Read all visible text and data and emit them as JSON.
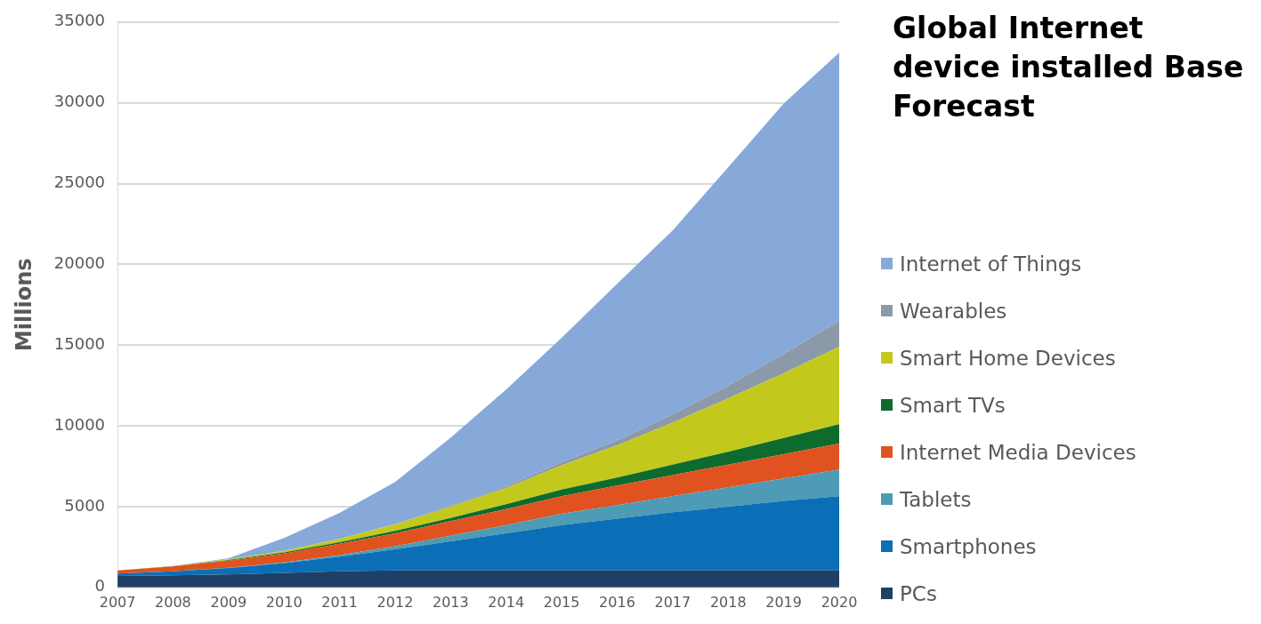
{
  "chart_data": {
    "type": "area",
    "stacked": true,
    "title": "Global Internet device installed Base Forecast",
    "ylabel": "Millions",
    "categories": [
      "2007",
      "2008",
      "2009",
      "2010",
      "2011",
      "2012",
      "2013",
      "2014",
      "2015",
      "2016",
      "2017",
      "2018",
      "2019",
      "2020"
    ],
    "ylim": [
      0,
      35000
    ],
    "yticks": [
      0,
      5000,
      10000,
      15000,
      20000,
      25000,
      30000,
      35000
    ],
    "grid": "y",
    "legend": "right",
    "series": [
      {
        "name": "PCs",
        "color": "#1f3f66",
        "values": [
          700,
          750,
          800,
          900,
          1000,
          1050,
          1050,
          1050,
          1050,
          1050,
          1050,
          1050,
          1050,
          1050
        ]
      },
      {
        "name": "Smartphones",
        "color": "#0b6fb8",
        "values": [
          150,
          250,
          400,
          600,
          900,
          1300,
          1800,
          2300,
          2800,
          3200,
          3600,
          3950,
          4300,
          4600
        ]
      },
      {
        "name": "Tablets",
        "color": "#4d9bb5",
        "values": [
          0,
          0,
          10,
          50,
          100,
          200,
          350,
          500,
          700,
          850,
          1000,
          1200,
          1400,
          1650
        ]
      },
      {
        "name": "Internet Media Devices",
        "color": "#e0521f",
        "values": [
          200,
          300,
          450,
          550,
          700,
          800,
          900,
          1000,
          1100,
          1200,
          1300,
          1400,
          1500,
          1600
        ]
      },
      {
        "name": "Smart TVs",
        "color": "#0e6b2e",
        "values": [
          0,
          10,
          30,
          60,
          100,
          150,
          200,
          300,
          400,
          500,
          650,
          800,
          1000,
          1200
        ]
      },
      {
        "name": "Smart Home Devices",
        "color": "#c2c91c",
        "values": [
          0,
          20,
          50,
          100,
          200,
          400,
          700,
          1000,
          1500,
          2000,
          2600,
          3300,
          4000,
          4800
        ]
      },
      {
        "name": "Wearables",
        "color": "#8c99a8",
        "values": [
          0,
          0,
          0,
          0,
          10,
          30,
          60,
          100,
          200,
          300,
          500,
          800,
          1200,
          1600
        ]
      },
      {
        "name": "Internet of Things",
        "color": "#86a9d9",
        "values": [
          0,
          0,
          60,
          800,
          1600,
          2600,
          4200,
          6000,
          7700,
          9700,
          11400,
          13500,
          15500,
          16600
        ]
      }
    ]
  }
}
